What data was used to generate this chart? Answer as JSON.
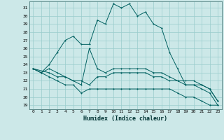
{
  "xlabel": "Humidex (Indice chaleur)",
  "bg_color": "#cce8e8",
  "grid_color": "#99cccc",
  "line_color": "#006060",
  "xlim": [
    -0.5,
    23.5
  ],
  "ylim": [
    18.5,
    31.8
  ],
  "xticks": [
    0,
    1,
    2,
    3,
    4,
    5,
    6,
    7,
    8,
    9,
    10,
    11,
    12,
    13,
    14,
    15,
    16,
    17,
    18,
    19,
    20,
    21,
    22,
    23
  ],
  "yticks": [
    19,
    20,
    21,
    22,
    23,
    24,
    25,
    26,
    27,
    28,
    29,
    30,
    31
  ],
  "curve1_x": [
    0,
    1,
    2,
    3,
    4,
    5,
    6,
    7,
    8,
    9,
    10,
    11,
    12,
    13,
    14,
    15,
    16,
    17,
    18,
    19,
    20,
    21,
    22,
    23
  ],
  "curve1_y": [
    23.5,
    23.0,
    24.0,
    25.5,
    27.0,
    27.5,
    26.5,
    26.5,
    29.5,
    29.0,
    31.5,
    31.0,
    31.5,
    30.0,
    30.5,
    29.0,
    28.5,
    25.5,
    23.5,
    21.5,
    21.5,
    21.0,
    20.5,
    19.0
  ],
  "curve2_x": [
    0,
    1,
    2,
    3,
    4,
    5,
    6,
    7,
    8,
    9,
    10,
    11,
    12,
    13,
    14,
    15,
    16,
    17,
    18,
    19,
    20,
    21,
    22,
    23
  ],
  "curve2_y": [
    23.5,
    23.0,
    23.5,
    23.0,
    22.5,
    22.0,
    21.5,
    26.0,
    23.5,
    23.0,
    23.5,
    23.5,
    23.5,
    23.5,
    23.5,
    23.0,
    23.0,
    22.5,
    22.0,
    21.5,
    21.5,
    21.5,
    21.0,
    19.5
  ],
  "curve3_x": [
    0,
    2,
    3,
    4,
    5,
    6,
    7,
    8,
    9,
    10,
    11,
    12,
    13,
    14,
    15,
    16,
    17,
    18,
    19,
    20,
    21,
    22,
    23
  ],
  "curve3_y": [
    23.5,
    23.0,
    22.5,
    22.5,
    22.0,
    22.0,
    21.5,
    22.5,
    22.5,
    23.0,
    23.0,
    23.0,
    23.0,
    23.0,
    22.5,
    22.5,
    22.0,
    22.0,
    22.0,
    22.0,
    21.5,
    21.0,
    19.5
  ],
  "curve4_x": [
    0,
    1,
    2,
    3,
    4,
    5,
    6,
    7,
    8,
    9,
    10,
    11,
    12,
    13,
    14,
    15,
    16,
    17,
    18,
    19,
    20,
    21,
    22,
    23
  ],
  "curve4_y": [
    23.5,
    23.0,
    22.5,
    22.0,
    21.5,
    21.5,
    20.5,
    21.0,
    21.0,
    21.0,
    21.0,
    21.0,
    21.0,
    21.0,
    21.0,
    21.0,
    21.0,
    21.0,
    20.5,
    20.0,
    20.0,
    19.5,
    19.0,
    19.0
  ]
}
